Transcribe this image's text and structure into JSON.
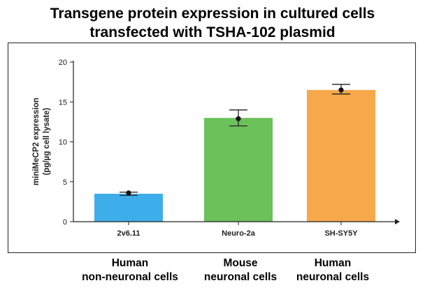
{
  "title_line1": "Transgene protein expression in cultured cells",
  "title_line2": "transfected with TSHA-102 plasmid",
  "groups": [
    {
      "line1": "Human",
      "line2": "non-neuronal cells"
    },
    {
      "line1": "Mouse",
      "line2": "neuronal cells"
    },
    {
      "line1": "Human",
      "line2": "neuronal cells"
    }
  ],
  "chart_data": {
    "type": "bar",
    "categories": [
      "2v6.11",
      "Neuro-2a",
      "SH-SY5Y"
    ],
    "values": [
      3.5,
      13.0,
      16.5
    ],
    "points": [
      3.6,
      12.9,
      16.5
    ],
    "errors": [
      [
        3.3,
        3.7
      ],
      [
        12.0,
        14.0
      ],
      [
        16.0,
        17.2
      ]
    ],
    "colors": [
      "#3daee9",
      "#6cc15a",
      "#f7a84a"
    ],
    "ylabel_line1": "miniMeCP2 expression",
    "ylabel_line2": "(pg/µg cell lysate)",
    "xlabel": "",
    "ylim": [
      0,
      20
    ],
    "yticks": [
      0,
      5,
      10,
      15,
      20
    ],
    "grid": false
  }
}
